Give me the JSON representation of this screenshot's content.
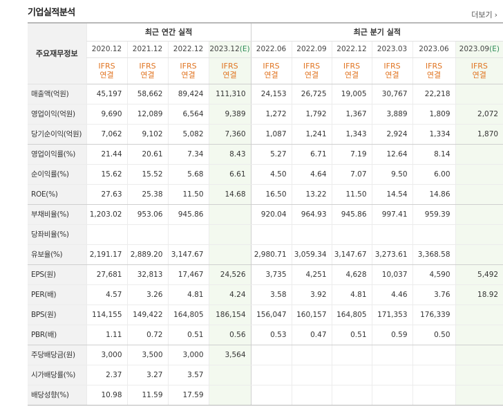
{
  "page": {
    "title": "기업실적분석",
    "more_label": "더보기",
    "more_arrow": "›"
  },
  "table": {
    "label_header": "주요재무정보",
    "annual_header": "최근 연간 실적",
    "quarter_header": "최근 분기 실적",
    "estimate_mark": "(E)",
    "annual_periods": [
      {
        "period": "2020.12",
        "est": ""
      },
      {
        "period": "2021.12",
        "est": ""
      },
      {
        "period": "2022.12",
        "est": ""
      },
      {
        "period": "2023.12",
        "est": "(E)"
      }
    ],
    "quarter_periods": [
      {
        "period": "2022.06",
        "est": ""
      },
      {
        "period": "2022.09",
        "est": ""
      },
      {
        "period": "2022.12",
        "est": ""
      },
      {
        "period": "2023.03",
        "est": ""
      },
      {
        "period": "2023.06",
        "est": ""
      },
      {
        "period": "2023.09",
        "est": "(E)"
      }
    ],
    "standard_line1": "IFRS",
    "standard_line2": "연결",
    "rows": [
      {
        "label": "매출액(억원)",
        "values": [
          "45,197",
          "58,662",
          "89,424",
          "111,310",
          "24,153",
          "26,725",
          "19,005",
          "30,767",
          "22,218",
          ""
        ]
      },
      {
        "label": "영업이익(억원)",
        "values": [
          "9,690",
          "12,089",
          "6,564",
          "9,389",
          "1,272",
          "1,792",
          "1,367",
          "3,889",
          "1,809",
          "2,072"
        ]
      },
      {
        "label": "당기순이익(억원)",
        "values": [
          "7,062",
          "9,102",
          "5,082",
          "7,360",
          "1,087",
          "1,241",
          "1,343",
          "2,924",
          "1,334",
          "1,870"
        ]
      },
      {
        "label": "영업이익률(%)",
        "values": [
          "21.44",
          "20.61",
          "7.34",
          "8.43",
          "5.27",
          "6.71",
          "7.19",
          "12.64",
          "8.14",
          ""
        ]
      },
      {
        "label": "순이익률(%)",
        "values": [
          "15.62",
          "15.52",
          "5.68",
          "6.61",
          "4.50",
          "4.64",
          "7.07",
          "9.50",
          "6.00",
          ""
        ]
      },
      {
        "label": "ROE(%)",
        "values": [
          "27.63",
          "25.38",
          "11.50",
          "14.68",
          "16.50",
          "13.22",
          "11.50",
          "14.54",
          "14.86",
          ""
        ]
      },
      {
        "label": "부채비율(%)",
        "values": [
          "1,203.02",
          "953.06",
          "945.86",
          "",
          "920.04",
          "964.93",
          "945.86",
          "997.41",
          "959.39",
          ""
        ]
      },
      {
        "label": "당좌비율(%)",
        "values": [
          "",
          "",
          "",
          "",
          "",
          "",
          "",
          "",
          "",
          ""
        ]
      },
      {
        "label": "유보율(%)",
        "values": [
          "2,191.17",
          "2,889.20",
          "3,147.67",
          "",
          "2,980.71",
          "3,059.34",
          "3,147.67",
          "3,273.61",
          "3,368.58",
          ""
        ]
      },
      {
        "label": "EPS(원)",
        "values": [
          "27,681",
          "32,813",
          "17,467",
          "24,526",
          "3,735",
          "4,251",
          "4,628",
          "10,037",
          "4,590",
          "5,492"
        ]
      },
      {
        "label": "PER(배)",
        "values": [
          "4.57",
          "3.26",
          "4.81",
          "4.24",
          "3.58",
          "3.92",
          "4.81",
          "4.46",
          "3.76",
          "18.92"
        ]
      },
      {
        "label": "BPS(원)",
        "values": [
          "114,155",
          "149,422",
          "164,805",
          "186,154",
          "156,047",
          "160,157",
          "164,805",
          "171,353",
          "176,339",
          ""
        ]
      },
      {
        "label": "PBR(배)",
        "values": [
          "1.11",
          "0.72",
          "0.51",
          "0.56",
          "0.53",
          "0.47",
          "0.51",
          "0.59",
          "0.50",
          ""
        ]
      },
      {
        "label": "주당배당금(원)",
        "values": [
          "3,000",
          "3,500",
          "3,000",
          "3,564",
          "",
          "",
          "",
          "",
          "",
          ""
        ]
      },
      {
        "label": "시가배당률(%)",
        "values": [
          "2.37",
          "3.27",
          "3.57",
          "",
          "",
          "",
          "",
          "",
          "",
          ""
        ]
      },
      {
        "label": "배당성향(%)",
        "values": [
          "10.98",
          "11.59",
          "17.59",
          "",
          "",
          "",
          "",
          "",
          "",
          ""
        ]
      }
    ]
  },
  "colors": {
    "standard_text": "#e07421",
    "estimate_text": "#2e8b57",
    "estimate_bg": "#f3f9ef",
    "label_bg": "#f2f2f2"
  }
}
